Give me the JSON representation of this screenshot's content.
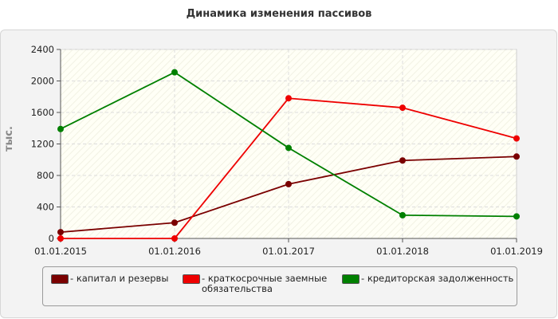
{
  "chart_data": {
    "type": "line",
    "title": "Динамика изменения пассивов",
    "ylabel": "тыс.",
    "xlabel": "",
    "categories": [
      "01.01.2015",
      "01.01.2016",
      "01.01.2017",
      "01.01.2018",
      "01.01.2019"
    ],
    "ylim": [
      0,
      2400
    ],
    "yticks": [
      0,
      400,
      800,
      1200,
      1600,
      2000,
      2400
    ],
    "grid": true,
    "legend_position": "bottom",
    "series": [
      {
        "name": "капитал и резервы",
        "color": "#7a0000",
        "values": [
          80,
          200,
          690,
          990,
          1040
        ]
      },
      {
        "name": "краткосрочные заемные обязательства",
        "color": "#ee0000",
        "values": [
          0,
          0,
          1780,
          1660,
          1270
        ]
      },
      {
        "name": "кредиторская задолженность",
        "color": "#008000",
        "values": [
          1390,
          2110,
          1150,
          295,
          280
        ]
      }
    ]
  }
}
